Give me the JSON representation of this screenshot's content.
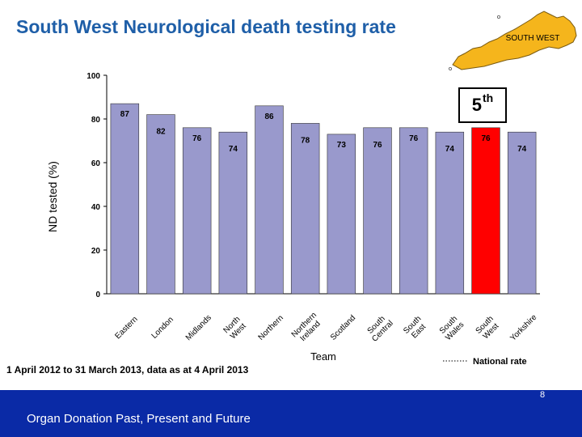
{
  "title": "South West Neurological death testing rate",
  "map_label": "SOUTH WEST",
  "rank": {
    "text": "5",
    "suffix": "th"
  },
  "footnote": "1 April 2012 to 31 March 2013, data as at 4 April 2013",
  "footer": {
    "text": "Organ Donation Past, Present and Future",
    "page": "8"
  },
  "colors": {
    "bar": "#9999cc",
    "highlight": "#ff0000",
    "footer": "#0a2aa6",
    "title": "#1f5fa8",
    "map": "#f5b51c"
  },
  "chart_data": {
    "type": "bar",
    "title": "",
    "xlabel": "Team",
    "ylabel": "ND tested (%)",
    "ylim": [
      0,
      100
    ],
    "yticks": [
      0,
      20,
      40,
      60,
      80,
      100
    ],
    "categories": [
      "Eastern",
      "London",
      "Midlands",
      "North West",
      "Northern",
      "Northern Ireland",
      "Scotland",
      "South Central",
      "South East",
      "South Wales",
      "South West",
      "Yorkshire"
    ],
    "tick_lines": [
      [
        "Eastern"
      ],
      [
        "London"
      ],
      [
        "Midlands"
      ],
      [
        "North",
        "West"
      ],
      [
        "Northern"
      ],
      [
        "Northern",
        "Ireland"
      ],
      [
        "Scotland"
      ],
      [
        "South",
        "Central"
      ],
      [
        "South",
        "East"
      ],
      [
        "South",
        "Wales"
      ],
      [
        "South",
        "West"
      ],
      [
        "Yorkshire"
      ]
    ],
    "values": [
      87,
      82,
      76,
      74,
      86,
      78,
      73,
      76,
      76,
      74,
      76,
      74
    ],
    "data_labels": [
      "87",
      "82",
      "76",
      "74",
      "86",
      "78",
      "73",
      "76",
      "76",
      "74",
      "76",
      "74"
    ],
    "highlight_index": 10,
    "legend": [
      {
        "name": "National rate",
        "style": "dotted-line"
      }
    ],
    "legend_position": "bottom-right",
    "grid": false
  }
}
